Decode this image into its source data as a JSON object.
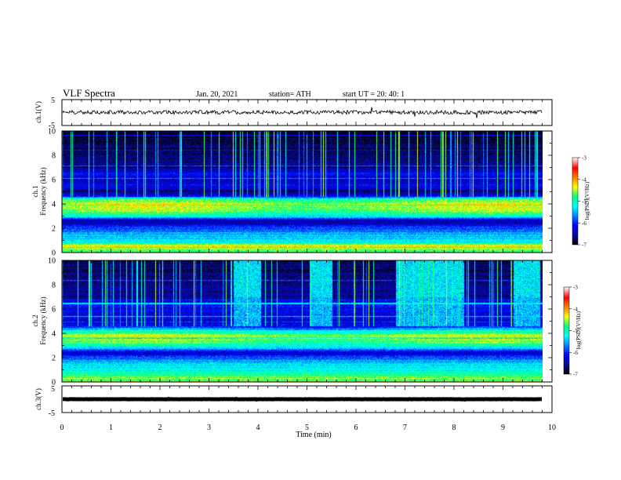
{
  "header": {
    "title": "VLF Spectra",
    "date": "Jan. 20, 2021",
    "station": "station= ATH",
    "start": "start  UT  =   20: 40: 1"
  },
  "chart_data": [
    {
      "type": "line",
      "panel": "ch1-waveform",
      "ylabel": "ch.1(V)",
      "ylim": [
        -5,
        5
      ],
      "y_tick_labels": [
        "5",
        "-5"
      ],
      "x_range_min": [
        0,
        9.8
      ],
      "trace_level_v": 0.1
    },
    {
      "type": "heatmap",
      "panel": "ch1-spectrogram",
      "ylabel": "ch.1\nFrequency (kHz)",
      "xlim": [
        0,
        10
      ],
      "x_data_end_min": 9.8,
      "ylim_khz": [
        0,
        10
      ],
      "y_tick_labels": [
        "0",
        "2",
        "4",
        "6",
        "8",
        "10"
      ],
      "colorbar": {
        "label": "log(PSD)(V²/Hz)",
        "range": [
          -7,
          -3
        ],
        "tick_labels": [
          "-3",
          "-4",
          "-5",
          "-6",
          "-7"
        ]
      },
      "colormap": [
        "#000000",
        "#0a0a96",
        "#0000ff",
        "#0082ff",
        "#00ffff",
        "#00ff80",
        "#ffff00",
        "#ff8000",
        "#ff0000",
        "#ffffff"
      ],
      "spectral_profile": [
        {
          "f_khz": 0.0,
          "level": 0.55
        },
        {
          "f_khz": 0.3,
          "level": 0.62
        },
        {
          "f_khz": 0.6,
          "level": 0.7
        },
        {
          "f_khz": 0.9,
          "level": 0.45
        },
        {
          "f_khz": 1.3,
          "level": 0.4
        },
        {
          "f_khz": 1.7,
          "level": 0.35
        },
        {
          "f_khz": 2.0,
          "level": 0.28
        },
        {
          "f_khz": 2.3,
          "level": 0.2
        },
        {
          "f_khz": 2.6,
          "level": 0.08
        },
        {
          "f_khz": 3.0,
          "level": 0.45
        },
        {
          "f_khz": 3.5,
          "level": 0.6
        },
        {
          "f_khz": 4.0,
          "level": 0.64
        },
        {
          "f_khz": 4.4,
          "level": 0.55
        },
        {
          "f_khz": 4.7,
          "level": 0.18
        },
        {
          "f_khz": 5.0,
          "level": 0.1
        },
        {
          "f_khz": 5.5,
          "level": 0.2
        },
        {
          "f_khz": 6.0,
          "level": 0.16
        },
        {
          "f_khz": 6.5,
          "level": 0.22
        },
        {
          "f_khz": 7.0,
          "level": 0.12
        },
        {
          "f_khz": 8.0,
          "level": 0.08
        },
        {
          "f_khz": 9.0,
          "level": 0.05
        },
        {
          "f_khz": 10.0,
          "level": 0.04
        }
      ],
      "spheric_density_per_min": 9,
      "hiss_events": []
    },
    {
      "type": "heatmap",
      "panel": "ch2-spectrogram",
      "ylabel": "ch.2\nFrequency (kHz)",
      "xlim": [
        0,
        10
      ],
      "x_data_end_min": 9.8,
      "ylim_khz": [
        0,
        10
      ],
      "y_tick_labels": [
        "0",
        "2",
        "4",
        "6",
        "8",
        "10"
      ],
      "colorbar": {
        "label": "log(PSD)(V²/Hz)",
        "range": [
          -7,
          -3
        ],
        "tick_labels": [
          "-3",
          "-4",
          "-5",
          "-6",
          "-7"
        ]
      },
      "colormap": [
        "#000000",
        "#0a0a96",
        "#0000ff",
        "#0082ff",
        "#00ffff",
        "#00ff80",
        "#ffff00",
        "#ff8000",
        "#ff0000",
        "#ffffff"
      ],
      "spectral_profile": [
        {
          "f_khz": 0.0,
          "level": 0.5
        },
        {
          "f_khz": 0.3,
          "level": 0.6
        },
        {
          "f_khz": 0.6,
          "level": 0.55
        },
        {
          "f_khz": 1.0,
          "level": 0.45
        },
        {
          "f_khz": 1.5,
          "level": 0.42
        },
        {
          "f_khz": 2.0,
          "level": 0.3
        },
        {
          "f_khz": 2.4,
          "level": 0.15
        },
        {
          "f_khz": 2.8,
          "level": 0.4
        },
        {
          "f_khz": 3.3,
          "level": 0.56
        },
        {
          "f_khz": 3.8,
          "level": 0.62
        },
        {
          "f_khz": 4.2,
          "level": 0.5
        },
        {
          "f_khz": 4.6,
          "level": 0.22
        },
        {
          "f_khz": 5.0,
          "level": 0.14
        },
        {
          "f_khz": 5.5,
          "level": 0.18
        },
        {
          "f_khz": 6.0,
          "level": 0.2
        },
        {
          "f_khz": 6.5,
          "level": 0.24
        },
        {
          "f_khz": 7.0,
          "level": 0.12
        },
        {
          "f_khz": 8.0,
          "level": 0.1
        },
        {
          "f_khz": 9.0,
          "level": 0.08
        },
        {
          "f_khz": 10.0,
          "level": 0.06
        }
      ],
      "spheric_density_per_min": 8,
      "hiss_events": [
        {
          "t_start_min": 3.5,
          "t_end_min": 4.05
        },
        {
          "t_start_min": 5.05,
          "t_end_min": 5.5
        },
        {
          "t_start_min": 6.8,
          "t_end_min": 8.2
        },
        {
          "t_start_min": 9.2,
          "t_end_min": 9.75
        }
      ]
    },
    {
      "type": "line",
      "panel": "ch3-waveform",
      "ylabel": "ch.3(V)",
      "ylim": [
        -5,
        5
      ],
      "y_tick_labels": [
        "5",
        "-5"
      ],
      "x_range_min": [
        0,
        9.8
      ],
      "trace_level_v": 0.0
    }
  ],
  "x_axis": {
    "label": "Time  (min)",
    "lim": [
      0,
      10
    ],
    "tick_labels": [
      "0",
      "1",
      "2",
      "3",
      "4",
      "5",
      "6",
      "7",
      "8",
      "9",
      "10"
    ]
  }
}
